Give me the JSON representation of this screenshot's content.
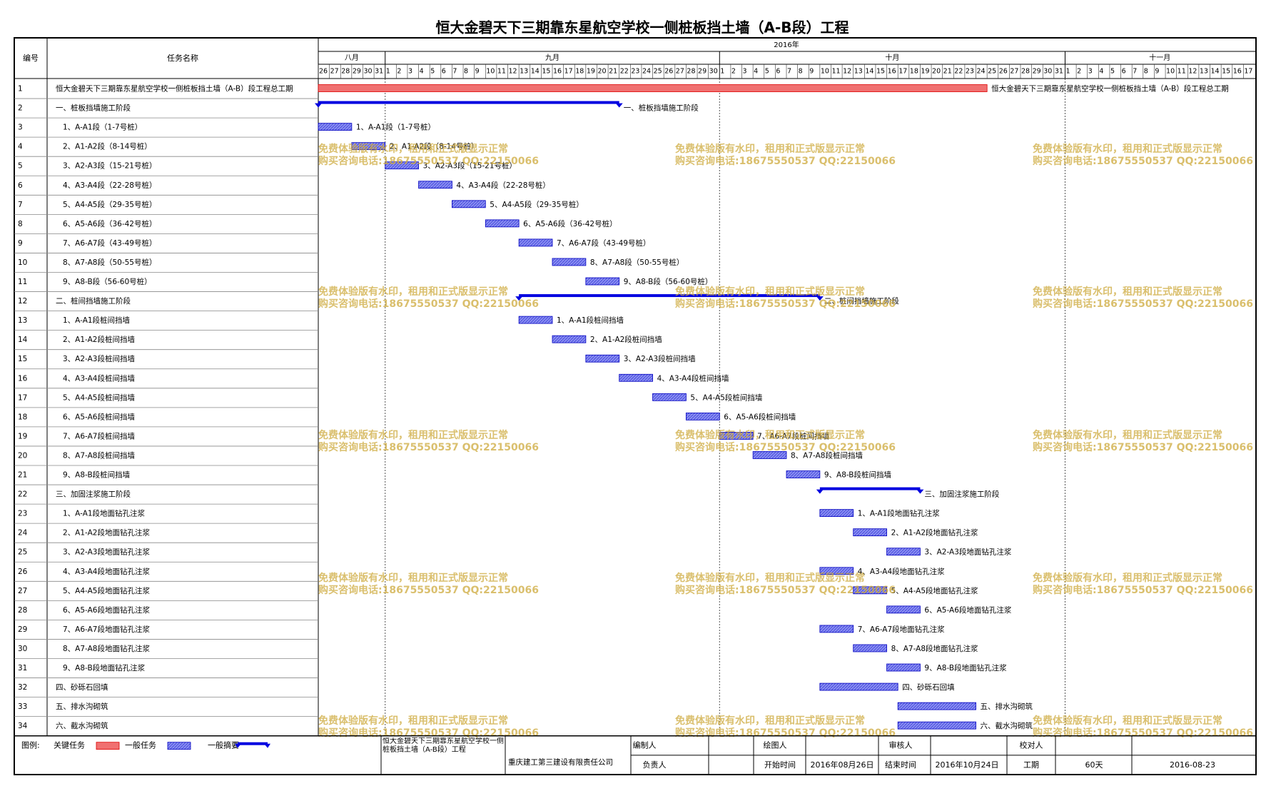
{
  "title": "恒大金碧天下三期靠东星航空学校一侧桩板挡土墙（A-B段）工程",
  "header": {
    "id": "编号",
    "name": "任务名称",
    "year": "2016年"
  },
  "timeline": {
    "months": [
      {
        "label": "八月",
        "days": [
          26,
          27,
          28,
          29,
          30,
          31
        ]
      },
      {
        "label": "九月",
        "days": [
          1,
          2,
          3,
          4,
          5,
          6,
          7,
          8,
          9,
          10,
          11,
          12,
          13,
          14,
          15,
          16,
          17,
          18,
          19,
          20,
          21,
          22,
          23,
          24,
          25,
          26,
          27,
          28,
          29,
          30
        ]
      },
      {
        "label": "十月",
        "days": [
          1,
          2,
          3,
          4,
          5,
          6,
          7,
          8,
          9,
          10,
          11,
          12,
          13,
          14,
          15,
          16,
          17,
          18,
          19,
          20,
          21,
          22,
          23,
          24,
          25,
          26,
          27,
          28,
          29,
          30,
          31
        ]
      },
      {
        "label": "十一月",
        "days": [
          1,
          2,
          3,
          4,
          5,
          6,
          7,
          8,
          9,
          10,
          11,
          12,
          13,
          14,
          15,
          16,
          17
        ]
      }
    ]
  },
  "tasks": [
    {
      "id": "1",
      "name": "恒大金碧天下三期靠东星航空学校一侧桩板挡土墙（A-B）段工程总工期",
      "type": "critical",
      "start": "2016-08-26",
      "end": "2016-10-24"
    },
    {
      "id": "2",
      "name": "一、桩板挡墙施工阶段",
      "type": "summary",
      "start": "2016-08-26",
      "end": "2016-09-21"
    },
    {
      "id": "3",
      "name": "1、A-A1段（1-7号桩）",
      "type": "normal",
      "start": "2016-08-26",
      "end": "2016-08-28"
    },
    {
      "id": "4",
      "name": "2、A1-A2段（8-14号桩）",
      "type": "normal",
      "start": "2016-08-29",
      "end": "2016-08-31"
    },
    {
      "id": "5",
      "name": "3、A2-A3段（15-21号桩）",
      "type": "normal",
      "start": "2016-09-01",
      "end": "2016-09-03"
    },
    {
      "id": "6",
      "name": "4、A3-A4段（22-28号桩）",
      "type": "normal",
      "start": "2016-09-04",
      "end": "2016-09-06"
    },
    {
      "id": "7",
      "name": "5、A4-A5段（29-35号桩）",
      "type": "normal",
      "start": "2016-09-07",
      "end": "2016-09-09"
    },
    {
      "id": "8",
      "name": "6、A5-A6段（36-42号桩）",
      "type": "normal",
      "start": "2016-09-10",
      "end": "2016-09-12"
    },
    {
      "id": "9",
      "name": "7、A6-A7段（43-49号桩）",
      "type": "normal",
      "start": "2016-09-13",
      "end": "2016-09-15"
    },
    {
      "id": "10",
      "name": "8、A7-A8段（50-55号桩）",
      "type": "normal",
      "start": "2016-09-16",
      "end": "2016-09-18"
    },
    {
      "id": "11",
      "name": "9、A8-B段（56-60号桩）",
      "type": "normal",
      "start": "2016-09-19",
      "end": "2016-09-21"
    },
    {
      "id": "12",
      "name": "二、桩间挡墙施工阶段",
      "type": "summary",
      "start": "2016-09-13",
      "end": "2016-10-09"
    },
    {
      "id": "13",
      "name": "1、A-A1段桩间挡墙",
      "type": "normal",
      "start": "2016-09-13",
      "end": "2016-09-15"
    },
    {
      "id": "14",
      "name": "2、A1-A2段桩间挡墙",
      "type": "normal",
      "start": "2016-09-16",
      "end": "2016-09-18"
    },
    {
      "id": "15",
      "name": "3、A2-A3段桩间挡墙",
      "type": "normal",
      "start": "2016-09-19",
      "end": "2016-09-21"
    },
    {
      "id": "16",
      "name": "4、A3-A4段桩间挡墙",
      "type": "normal",
      "start": "2016-09-22",
      "end": "2016-09-24"
    },
    {
      "id": "17",
      "name": "5、A4-A5段桩间挡墙",
      "type": "normal",
      "start": "2016-09-25",
      "end": "2016-09-27"
    },
    {
      "id": "18",
      "name": "6、A5-A6段桩间挡墙",
      "type": "normal",
      "start": "2016-09-28",
      "end": "2016-09-30"
    },
    {
      "id": "19",
      "name": "7、A6-A7段桩间挡墙",
      "type": "normal",
      "start": "2016-10-01",
      "end": "2016-10-03"
    },
    {
      "id": "20",
      "name": "8、A7-A8段桩间挡墙",
      "type": "normal",
      "start": "2016-10-04",
      "end": "2016-10-06"
    },
    {
      "id": "21",
      "name": "9、A8-B段桩间挡墙",
      "type": "normal",
      "start": "2016-10-07",
      "end": "2016-10-09"
    },
    {
      "id": "22",
      "name": "三、加固注浆施工阶段",
      "type": "summary",
      "start": "2016-10-10",
      "end": "2016-10-18"
    },
    {
      "id": "23",
      "name": "1、A-A1段地面钻孔注浆",
      "type": "normal",
      "start": "2016-10-10",
      "end": "2016-10-12"
    },
    {
      "id": "24",
      "name": "2、A1-A2段地面钻孔注浆",
      "type": "normal",
      "start": "2016-10-13",
      "end": "2016-10-15"
    },
    {
      "id": "25",
      "name": "3、A2-A3段地面钻孔注浆",
      "type": "normal",
      "start": "2016-10-16",
      "end": "2016-10-18"
    },
    {
      "id": "26",
      "name": "4、A3-A4段地面钻孔注浆",
      "type": "normal",
      "start": "2016-10-10",
      "end": "2016-10-12"
    },
    {
      "id": "27",
      "name": "5、A4-A5段地面钻孔注浆",
      "type": "normal",
      "start": "2016-10-13",
      "end": "2016-10-15"
    },
    {
      "id": "28",
      "name": "6、A5-A6段地面钻孔注浆",
      "type": "normal",
      "start": "2016-10-16",
      "end": "2016-10-18"
    },
    {
      "id": "29",
      "name": "7、A6-A7段地面钻孔注浆",
      "type": "normal",
      "start": "2016-10-10",
      "end": "2016-10-12"
    },
    {
      "id": "30",
      "name": "8、A7-A8段地面钻孔注浆",
      "type": "normal",
      "start": "2016-10-13",
      "end": "2016-10-15"
    },
    {
      "id": "31",
      "name": "9、A8-B段地面钻孔注浆",
      "type": "normal",
      "start": "2016-10-16",
      "end": "2016-10-18"
    },
    {
      "id": "32",
      "name": "四、砂砾石回填",
      "type": "normal",
      "start": "2016-10-10",
      "end": "2016-10-16"
    },
    {
      "id": "33",
      "name": "五、排水沟砌筑",
      "type": "normal",
      "start": "2016-10-17",
      "end": "2016-10-23"
    },
    {
      "id": "34",
      "name": "六、截水沟砌筑",
      "type": "normal",
      "start": "2016-10-17",
      "end": "2016-10-23"
    }
  ],
  "colors": {
    "critical": "#f07070",
    "normal": "#7b80f0",
    "summary": "#0000e0"
  },
  "watermark": [
    "免费体验版有水印，租用和正式版显示正常",
    "购买咨询电话:18675550537 QQ:22150066"
  ],
  "legend": {
    "title": "图例:",
    "items": [
      {
        "label": "关键任务",
        "type": "critical"
      },
      {
        "label": "一般任务",
        "type": "normal"
      },
      {
        "label": "一般摘要",
        "type": "summary"
      }
    ]
  },
  "footer": {
    "project": "恒大金碧天下三期靠东星航空学校一侧桩板挡土墙（A-B段）工程",
    "company": "重庆建工第三建设有限责任公司",
    "row1": [
      "编制人",
      "绘图人",
      "审核人",
      "校对人"
    ],
    "row2": [
      "负责人",
      "开始时间",
      "2016年08月26日",
      "结束时间",
      "2016年10月24日",
      "工期",
      "60天",
      "2016-08-23"
    ]
  }
}
